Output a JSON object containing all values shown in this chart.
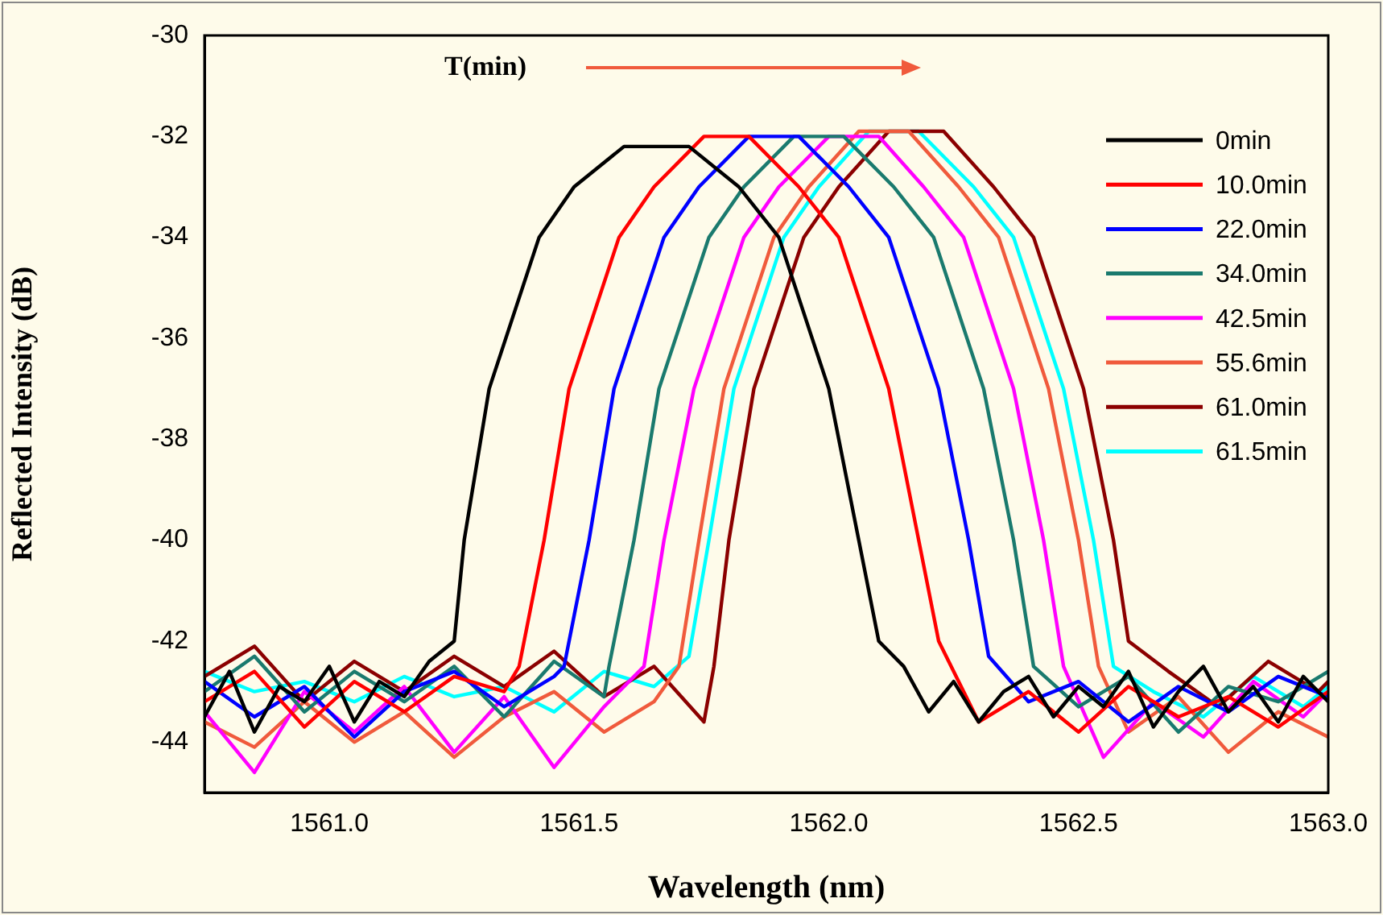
{
  "chart_data": {
    "type": "line",
    "xlabel": "Wavelength (nm)",
    "ylabel": "Reflected Intensity (dB)",
    "annotations": [
      "T(min)"
    ],
    "xlim": [
      1560.75,
      1563.0
    ],
    "ylim": [
      -45,
      -30
    ],
    "xticks": [
      {
        "value": 1561,
        "label": "1561.0"
      },
      {
        "value": 1561.5,
        "label": "1561.5"
      },
      {
        "value": 1562,
        "label": "1562.0"
      },
      {
        "value": 1562.5,
        "label": "1562.5"
      },
      {
        "value": 1563,
        "label": "1563.0"
      }
    ],
    "yticks": [
      -44,
      -42,
      -40,
      -38,
      -36,
      -34,
      -32,
      -30
    ],
    "grid": false,
    "legend": "top right",
    "marker": "none",
    "series": [
      {
        "name": "0min",
        "color": "#000000",
        "x": [
          1560.75,
          1560.8,
          1560.85,
          1560.9,
          1560.95,
          1561.0,
          1561.05,
          1561.1,
          1561.15,
          1561.2,
          1561.25,
          1561.27,
          1561.32,
          1561.42,
          1561.49,
          1561.59,
          1561.72,
          1561.82,
          1561.9,
          1562.0,
          1562.06,
          1562.1,
          1562.15,
          1562.2,
          1562.25,
          1562.3,
          1562.35,
          1562.4,
          1562.45,
          1562.5,
          1562.55,
          1562.6,
          1562.65,
          1562.7,
          1562.75,
          1562.8,
          1562.85,
          1562.9,
          1562.95,
          1563.0
        ],
        "values": [
          -43.5,
          -42.6,
          -43.8,
          -42.9,
          -43.2,
          -42.5,
          -43.6,
          -42.8,
          -43.1,
          -42.4,
          -42.0,
          -40,
          -37,
          -34,
          -33,
          -32.2,
          -32.2,
          -33,
          -34,
          -37,
          -40,
          -42,
          -42.5,
          -43.4,
          -42.8,
          -43.6,
          -43.0,
          -42.7,
          -43.5,
          -42.9,
          -43.3,
          -42.6,
          -43.7,
          -43.0,
          -42.5,
          -43.4,
          -42.9,
          -43.6,
          -42.7,
          -43.2
        ]
      },
      {
        "name": "10.0min",
        "color": "#ff0000",
        "x": [
          1560.75,
          1560.85,
          1560.95,
          1561.05,
          1561.15,
          1561.25,
          1561.35,
          1561.38,
          1561.43,
          1561.48,
          1561.58,
          1561.65,
          1561.75,
          1561.84,
          1561.94,
          1562.02,
          1562.12,
          1562.18,
          1562.22,
          1562.3,
          1562.4,
          1562.5,
          1562.6,
          1562.7,
          1562.8,
          1562.9,
          1563.0
        ],
        "values": [
          -43.2,
          -42.6,
          -43.7,
          -42.8,
          -43.4,
          -42.7,
          -43.0,
          -42.5,
          -40,
          -37,
          -34,
          -33,
          -32.0,
          -32.0,
          -33,
          -34,
          -37,
          -40,
          -42,
          -43.6,
          -43.0,
          -43.8,
          -42.9,
          -43.5,
          -43.1,
          -43.7,
          -43.0
        ]
      },
      {
        "name": "22.0min",
        "color": "#0000ff",
        "x": [
          1560.75,
          1560.85,
          1560.95,
          1561.05,
          1561.15,
          1561.25,
          1561.35,
          1561.45,
          1561.47,
          1561.52,
          1561.57,
          1561.67,
          1561.74,
          1561.84,
          1561.94,
          1562.04,
          1562.12,
          1562.22,
          1562.28,
          1562.32,
          1562.4,
          1562.5,
          1562.6,
          1562.7,
          1562.8,
          1562.9,
          1563.0
        ],
        "values": [
          -42.8,
          -43.5,
          -42.9,
          -43.9,
          -43.0,
          -42.6,
          -43.3,
          -42.7,
          -42.5,
          -40,
          -37,
          -34,
          -33,
          -32.0,
          -32.0,
          -33,
          -34,
          -37,
          -40,
          -42.3,
          -43.2,
          -42.8,
          -43.6,
          -42.9,
          -43.4,
          -42.7,
          -43.1
        ]
      },
      {
        "name": "34.0min",
        "color": "#1a7a6e",
        "x": [
          1560.75,
          1560.85,
          1560.95,
          1561.05,
          1561.15,
          1561.25,
          1561.35,
          1561.45,
          1561.55,
          1561.56,
          1561.61,
          1561.66,
          1561.76,
          1561.83,
          1561.93,
          1562.03,
          1562.13,
          1562.21,
          1562.31,
          1562.37,
          1562.41,
          1562.5,
          1562.6,
          1562.7,
          1562.8,
          1562.9,
          1563.0
        ],
        "values": [
          -43.0,
          -42.3,
          -43.4,
          -42.6,
          -43.2,
          -42.5,
          -43.5,
          -42.4,
          -43.1,
          -42.5,
          -40,
          -37,
          -34,
          -33,
          -32.0,
          -32.0,
          -33,
          -34,
          -37,
          -40,
          -42.5,
          -43.3,
          -42.7,
          -43.8,
          -42.9,
          -43.2,
          -42.6
        ]
      },
      {
        "name": "42.5min",
        "color": "#ff00ff",
        "x": [
          1560.75,
          1560.85,
          1560.95,
          1561.05,
          1561.15,
          1561.25,
          1561.35,
          1561.45,
          1561.55,
          1561.63,
          1561.67,
          1561.73,
          1561.83,
          1561.9,
          1562.0,
          1562.1,
          1562.19,
          1562.27,
          1562.37,
          1562.43,
          1562.47,
          1562.55,
          1562.65,
          1562.75,
          1562.85,
          1562.95,
          1563.0
        ],
        "values": [
          -43.4,
          -44.6,
          -43.0,
          -43.8,
          -42.9,
          -44.2,
          -43.1,
          -44.5,
          -43.3,
          -42.5,
          -40,
          -37,
          -34,
          -33,
          -32.0,
          -32.0,
          -33,
          -34,
          -37,
          -40,
          -42.5,
          -44.3,
          -43.2,
          -43.9,
          -42.8,
          -43.5,
          -43.0
        ]
      },
      {
        "name": "55.6min",
        "color": "#f05a3c",
        "x": [
          1560.75,
          1560.85,
          1560.95,
          1561.05,
          1561.15,
          1561.25,
          1561.35,
          1561.45,
          1561.55,
          1561.65,
          1561.7,
          1561.74,
          1561.79,
          1561.89,
          1561.96,
          1562.06,
          1562.16,
          1562.26,
          1562.34,
          1562.44,
          1562.5,
          1562.54,
          1562.6,
          1562.7,
          1562.8,
          1562.9,
          1563.0
        ],
        "values": [
          -43.6,
          -44.1,
          -43.2,
          -44.0,
          -43.4,
          -44.3,
          -43.5,
          -43.0,
          -43.8,
          -43.2,
          -42.5,
          -40,
          -37,
          -34,
          -33,
          -31.9,
          -31.9,
          -33,
          -34,
          -37,
          -40,
          -42.5,
          -43.8,
          -43.1,
          -44.2,
          -43.4,
          -43.9
        ]
      },
      {
        "name": "61.0min",
        "color": "#8b0000",
        "x": [
          1560.75,
          1560.85,
          1560.95,
          1561.05,
          1561.15,
          1561.25,
          1561.35,
          1561.45,
          1561.55,
          1561.65,
          1561.75,
          1561.77,
          1561.8,
          1561.85,
          1561.95,
          1562.02,
          1562.12,
          1562.23,
          1562.33,
          1562.41,
          1562.51,
          1562.57,
          1562.6,
          1562.68,
          1562.78,
          1562.88,
          1562.98,
          1563.0
        ],
        "values": [
          -42.7,
          -42.1,
          -43.2,
          -42.4,
          -43.0,
          -42.3,
          -42.9,
          -42.2,
          -43.1,
          -42.5,
          -43.6,
          -42.5,
          -40,
          -37,
          -34,
          -33,
          -31.9,
          -31.9,
          -33,
          -34,
          -37,
          -40,
          -42,
          -42.6,
          -43.3,
          -42.4,
          -43.0,
          -42.8
        ]
      },
      {
        "name": "61.5min",
        "color": "#00ffff",
        "x": [
          1560.75,
          1560.85,
          1560.95,
          1561.05,
          1561.15,
          1561.25,
          1561.35,
          1561.45,
          1561.55,
          1561.65,
          1561.72,
          1561.76,
          1561.81,
          1561.91,
          1561.98,
          1562.08,
          1562.18,
          1562.29,
          1562.37,
          1562.47,
          1562.53,
          1562.57,
          1562.65,
          1562.75,
          1562.85,
          1562.95,
          1563.0
        ],
        "values": [
          -42.6,
          -43.0,
          -42.8,
          -43.2,
          -42.7,
          -43.1,
          -42.9,
          -43.4,
          -42.6,
          -42.9,
          -42.3,
          -40,
          -37,
          -34,
          -33,
          -31.9,
          -31.9,
          -33,
          -34,
          -37,
          -40,
          -42.5,
          -43.0,
          -43.5,
          -42.7,
          -43.3,
          -42.9
        ]
      }
    ]
  }
}
